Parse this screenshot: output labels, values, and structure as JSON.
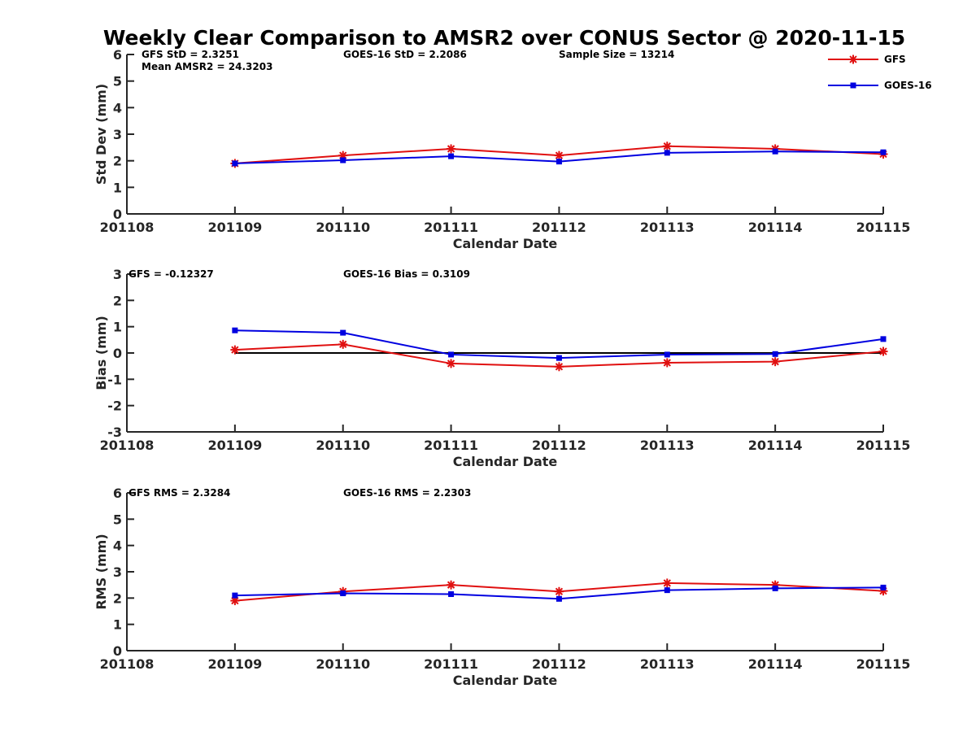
{
  "title": "Weekly Clear Comparison to AMSR2 over CONUS Sector @ 2020-11-15",
  "colors": {
    "GFS": "#e01010",
    "GOES-16": "#0000e0",
    "zero_line": "#000000"
  },
  "legend": {
    "placement": "top-right",
    "entries": [
      {
        "name": "GFS",
        "marker": "asterisk",
        "color": "#e01010"
      },
      {
        "name": "GOES-16",
        "marker": "square",
        "color": "#0000e0"
      }
    ]
  },
  "chart_data": [
    {
      "id": "std",
      "type": "line",
      "xlabel": "Calendar Date",
      "ylabel": "Std Dev (mm)",
      "x_ticks": [
        "201108",
        "201109",
        "201110",
        "201111",
        "201112",
        "201113",
        "201114",
        "201115"
      ],
      "x_domain": [
        0,
        7
      ],
      "ylim": [
        0,
        6
      ],
      "y_ticks": [
        "0",
        "1",
        "2",
        "3",
        "4",
        "5",
        "6"
      ],
      "annotations": [
        "GFS StD = 2.3251",
        "GOES-16 StD = 2.2086",
        "Sample Size = 13214",
        "Mean AMSR2 = 24.3203"
      ],
      "x": [
        1,
        2,
        3,
        4,
        5,
        6,
        7
      ],
      "series": [
        {
          "name": "GFS",
          "values": [
            1.9,
            2.2,
            2.45,
            2.2,
            2.55,
            2.45,
            2.25
          ]
        },
        {
          "name": "GOES-16",
          "values": [
            1.9,
            2.02,
            2.17,
            1.97,
            2.3,
            2.35,
            2.32
          ]
        }
      ]
    },
    {
      "id": "bias",
      "type": "line",
      "xlabel": "Calendar Date",
      "ylabel": "Bias (mm)",
      "x_ticks": [
        "201108",
        "201109",
        "201110",
        "201111",
        "201112",
        "201113",
        "201114",
        "201115"
      ],
      "x_domain": [
        0,
        7
      ],
      "ylim": [
        -3,
        3
      ],
      "y_ticks": [
        "-3",
        "-2",
        "-1",
        "0",
        "1",
        "2",
        "3"
      ],
      "annotations": [
        "GFS = -0.12327",
        "GOES-16 Bias  = 0.3109"
      ],
      "zero_line": true,
      "x": [
        1,
        2,
        3,
        4,
        5,
        6,
        7
      ],
      "series": [
        {
          "name": "GFS",
          "values": [
            0.12,
            0.33,
            -0.4,
            -0.52,
            -0.37,
            -0.33,
            0.06
          ]
        },
        {
          "name": "GOES-16",
          "values": [
            0.86,
            0.77,
            -0.06,
            -0.19,
            -0.06,
            -0.04,
            0.53
          ]
        }
      ]
    },
    {
      "id": "rms",
      "type": "line",
      "xlabel": "Calendar Date",
      "ylabel": "RMS (mm)",
      "x_ticks": [
        "201108",
        "201109",
        "201110",
        "201111",
        "201112",
        "201113",
        "201114",
        "201115"
      ],
      "x_domain": [
        0,
        7
      ],
      "ylim": [
        0,
        6
      ],
      "y_ticks": [
        "0",
        "1",
        "2",
        "3",
        "4",
        "5",
        "6"
      ],
      "annotations": [
        "GFS RMS = 2.3284",
        "GOES-16 RMS = 2.2303"
      ],
      "x": [
        1,
        2,
        3,
        4,
        5,
        6,
        7
      ],
      "series": [
        {
          "name": "GFS",
          "values": [
            1.9,
            2.25,
            2.5,
            2.25,
            2.57,
            2.5,
            2.27
          ]
        },
        {
          "name": "GOES-16",
          "values": [
            2.1,
            2.18,
            2.15,
            1.97,
            2.3,
            2.37,
            2.4
          ]
        }
      ]
    }
  ]
}
